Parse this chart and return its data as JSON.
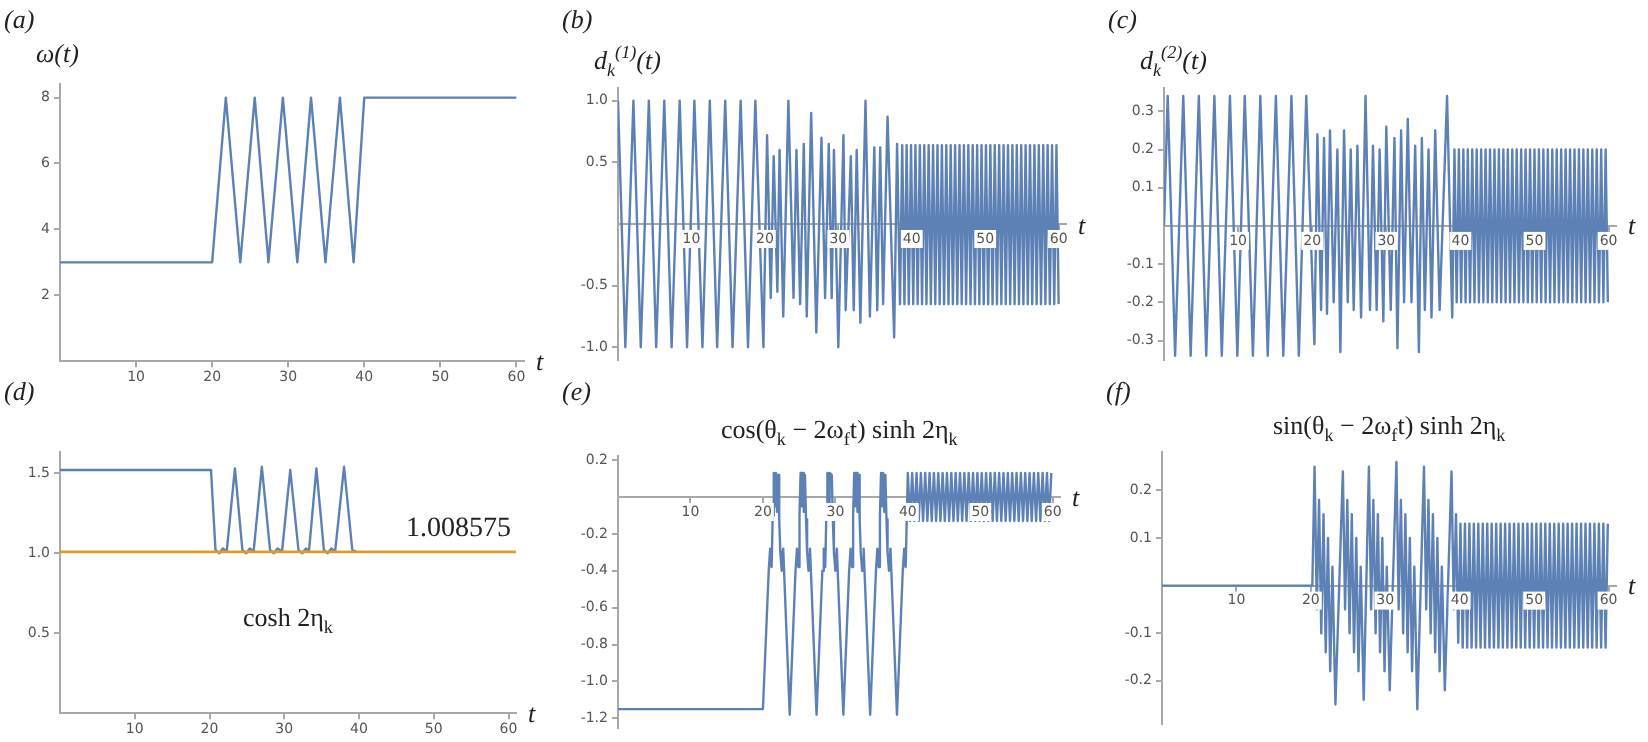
{
  "chart_data": [
    {
      "type": "line",
      "annotations": [
        "(a)"
      ],
      "ylabel": "ω(t)",
      "xlabel": "t",
      "xlim": [
        0,
        61
      ],
      "xticks": [
        10,
        20,
        30,
        40,
        50,
        60
      ],
      "ylim": [
        0,
        8.4
      ],
      "yticks": [
        2,
        4,
        6,
        8
      ],
      "series": [
        {
          "color": "#5e81b5",
          "x": [
            0,
            20,
            21.8,
            23.7,
            25.6,
            27.4,
            29.3,
            31.2,
            33.0,
            34.9,
            36.8,
            38.6,
            40,
            60
          ],
          "values": [
            3,
            3,
            8,
            3,
            8,
            3,
            8,
            3,
            8,
            3,
            8,
            3,
            8,
            8
          ]
        }
      ]
    },
    {
      "type": "line",
      "annotations": [
        "(b)"
      ],
      "ylabel": "d$_{k}$$^{(1)}$(t)",
      "xlabel": "t",
      "xlim": [
        0,
        61
      ],
      "xticks": [
        10,
        20,
        30,
        40,
        50,
        60
      ],
      "ylim": [
        -1.1,
        1.1
      ],
      "yticks": [
        {
          "value": -1,
          "label": "-1.0"
        },
        {
          "value": -0.5,
          "label": "-0.5"
        },
        {
          "value": 0.5,
          "label": "0.5"
        },
        {
          "value": 1,
          "label": "1.0"
        }
      ],
      "series": [
        {
          "color": "#5e81b5",
          "x": [
            0,
            1.0,
            2.1,
            3.1,
            4.2,
            5.2,
            6.3,
            7.3,
            8.4,
            9.4,
            10.4,
            11.5,
            12.5,
            13.5,
            14.6,
            15.6,
            16.7,
            17.7,
            18.7,
            19.8,
            20.3,
            20.8,
            21.2,
            21.7,
            22.0,
            22.5,
            23.2,
            23.9,
            24.3,
            24.8,
            25.3,
            25.7,
            26.3,
            27.0,
            27.7,
            28.2,
            28.7,
            29.1,
            29.4,
            30.0,
            30.7,
            31.0,
            31.7,
            32.1,
            32.5,
            33.0,
            33.7,
            34.3,
            34.9,
            35.3,
            35.7,
            36.1,
            36.7,
            37.6,
            38.0,
            38.4,
            38.7,
            39.0,
            39.3,
            39.6,
            39.9,
            40.2,
            40.5,
            40.8,
            41.1,
            41.4,
            41.7,
            42.0,
            42.3,
            42.6,
            42.9,
            43.2,
            43.5,
            43.8,
            44.1,
            44.4,
            44.7,
            45.0,
            45.3,
            45.6,
            45.9,
            46.2,
            46.5,
            46.8,
            47.1,
            47.4,
            47.7,
            48.0,
            48.3,
            48.6,
            48.9,
            49.2,
            49.5,
            49.8,
            50.1,
            50.4,
            50.7,
            51.0,
            51.3,
            51.6,
            51.9,
            52.2,
            52.5,
            52.8,
            53.1,
            53.4,
            53.7,
            54.0,
            54.3,
            54.6,
            54.9,
            55.2,
            55.5,
            55.8,
            56.1,
            56.4,
            56.7,
            57.0,
            57.3,
            57.6,
            57.9,
            58.2,
            58.5,
            58.8,
            59.1,
            59.4,
            59.7,
            60.0
          ],
          "values": [
            1,
            -1,
            1,
            -1,
            1,
            -1,
            1,
            -1,
            1,
            -1,
            1,
            -1,
            1,
            -1,
            1,
            -1,
            1,
            -1,
            1,
            -1,
            0.72,
            -0.6,
            0.55,
            -0.55,
            0.6,
            -0.75,
            1.0,
            -0.6,
            0.6,
            -0.65,
            0.65,
            -0.75,
            0.9,
            -0.88,
            0.7,
            -0.6,
            0.65,
            -0.6,
            0.6,
            -1.0,
            0.72,
            -0.7,
            0.55,
            -0.7,
            0.6,
            -0.8,
            1.0,
            -0.75,
            0.62,
            -0.7,
            0.62,
            -0.65,
            0.87,
            -0.92,
            0.65,
            -0.65,
            0.64,
            -0.65,
            0.64,
            -0.65,
            0.64,
            -0.65,
            0.64,
            -0.65,
            0.64,
            -0.65,
            0.64,
            -0.65,
            0.64,
            -0.65,
            0.64,
            -0.65,
            0.64,
            -0.65,
            0.64,
            -0.65,
            0.64,
            -0.65,
            0.64,
            -0.65,
            0.64,
            -0.65,
            0.64,
            -0.65,
            0.64,
            -0.65,
            0.64,
            -0.65,
            0.64,
            -0.65,
            0.64,
            -0.65,
            0.64,
            -0.65,
            0.64,
            -0.65,
            0.64,
            -0.65,
            0.64,
            -0.65,
            0.64,
            -0.65,
            0.64,
            -0.65,
            0.64,
            -0.65,
            0.64,
            -0.65,
            0.64,
            -0.65,
            0.64,
            -0.65,
            0.64,
            -0.65,
            0.64,
            -0.65,
            0.64,
            -0.65,
            0.64,
            -0.65,
            0.64,
            -0.65,
            0.64,
            -0.65,
            0.64,
            -0.65,
            0.64,
            -0.65
          ]
        }
      ]
    },
    {
      "type": "line",
      "annotations": [
        "(c)"
      ],
      "ylabel": "d$_{k}$$^{(2)}$(t)",
      "xlabel": "t",
      "xlim": [
        0,
        61
      ],
      "xticks": [
        10,
        20,
        30,
        40,
        50,
        60
      ],
      "ylim": [
        -0.35,
        0.36
      ],
      "yticks": [
        {
          "value": -0.3,
          "label": "-0.3"
        },
        {
          "value": -0.2,
          "label": "-0.2"
        },
        {
          "value": -0.1,
          "label": "-0.1"
        },
        0.1,
        0.2,
        0.3
      ],
      "series": [
        {
          "color": "#5e81b5",
          "x": [
            0,
            0.5,
            1.5,
            2.6,
            3.6,
            4.7,
            5.7,
            6.8,
            7.8,
            8.9,
            9.9,
            10.9,
            12.0,
            13.0,
            14.0,
            15.1,
            16.1,
            17.2,
            18.2,
            19.2,
            20.3,
            20.7,
            21.2,
            21.6,
            22.0,
            22.4,
            22.9,
            23.4,
            23.8,
            24.3,
            24.8,
            25.2,
            25.6,
            26.1,
            26.6,
            27.2,
            27.8,
            28.2,
            28.7,
            29.1,
            29.6,
            30.0,
            30.6,
            31.1,
            31.5,
            32.0,
            32.4,
            32.9,
            33.4,
            33.9,
            34.4,
            34.8,
            35.2,
            35.7,
            36.1,
            36.6,
            37.2,
            38.2,
            38.9,
            39.2,
            39.5,
            39.8,
            40.1,
            40.4,
            40.7,
            41.0,
            41.3,
            41.6,
            41.9,
            42.2,
            42.5,
            42.8,
            43.1,
            43.4,
            43.7,
            44.0,
            44.3,
            44.6,
            44.9,
            45.2,
            45.5,
            45.8,
            46.1,
            46.4,
            46.7,
            47.0,
            47.3,
            47.6,
            47.9,
            48.2,
            48.5,
            48.8,
            49.1,
            49.4,
            49.7,
            50.0,
            50.3,
            50.6,
            50.9,
            51.2,
            51.5,
            51.8,
            52.1,
            52.4,
            52.7,
            53.0,
            53.3,
            53.6,
            53.9,
            54.2,
            54.5,
            54.8,
            55.1,
            55.4,
            55.7,
            56.0,
            56.3,
            56.6,
            56.9,
            57.2,
            57.5,
            57.8,
            58.1,
            58.4,
            58.7,
            59.0,
            59.3,
            59.6,
            59.9
          ],
          "values": [
            0,
            0.34,
            -0.34,
            0.34,
            -0.34,
            0.34,
            -0.34,
            0.34,
            -0.34,
            0.34,
            -0.34,
            0.34,
            -0.34,
            0.34,
            -0.34,
            0.34,
            -0.34,
            0.34,
            -0.34,
            0.34,
            -0.31,
            0.24,
            -0.22,
            0.23,
            -0.23,
            0.25,
            -0.2,
            0.2,
            -0.33,
            0.25,
            -0.2,
            0.2,
            -0.22,
            0.21,
            -0.24,
            0.34,
            -0.22,
            0.21,
            -0.22,
            0.2,
            -0.25,
            0.26,
            -0.22,
            0.23,
            -0.32,
            0.25,
            -0.2,
            0.28,
            -0.2,
            0.21,
            -0.33,
            0.23,
            -0.22,
            0.2,
            -0.24,
            0.25,
            -0.22,
            0.34,
            -0.24,
            0.2,
            -0.2,
            0.2,
            -0.2,
            0.2,
            -0.2,
            0.2,
            -0.2,
            0.2,
            -0.2,
            0.2,
            -0.2,
            0.2,
            -0.2,
            0.2,
            -0.2,
            0.2,
            -0.2,
            0.2,
            -0.2,
            0.2,
            -0.2,
            0.2,
            -0.2,
            0.2,
            -0.2,
            0.2,
            -0.2,
            0.2,
            -0.2,
            0.2,
            -0.2,
            0.2,
            -0.2,
            0.2,
            -0.2,
            0.2,
            -0.2,
            0.2,
            -0.2,
            0.2,
            -0.2,
            0.2,
            -0.2,
            0.2,
            -0.2,
            0.2,
            -0.2,
            0.2,
            -0.2,
            0.2,
            -0.2,
            0.2,
            -0.2,
            0.2,
            -0.2,
            0.2,
            -0.2,
            0.2,
            -0.2,
            0.2,
            -0.2,
            0.2,
            -0.2,
            0.2,
            -0.2,
            0.2,
            -0.2,
            0.2,
            -0.2
          ]
        }
      ]
    },
    {
      "type": "line",
      "annotations": [
        "(d)"
      ],
      "xlabel": "t",
      "xlim": [
        0,
        61
      ],
      "xticks": [
        10,
        20,
        30,
        40,
        50,
        60
      ],
      "ylim": [
        0,
        1.63
      ],
      "yticks": [
        0.5,
        {
          "value": 1,
          "label": "1.0"
        },
        1.5
      ],
      "ref_lines": [
        {
          "axis": "y",
          "value": 1.008575,
          "label": "1.008575",
          "color": "#e19c24"
        }
      ],
      "series": [
        {
          "name": "cosh 2η$_{k}$",
          "color": "#5e81b5",
          "x": [
            0,
            20.2,
            20.8,
            21.3,
            21.8,
            22.3,
            23.4,
            24.4,
            24.9,
            25.4,
            25.9,
            27.0,
            28.1,
            28.6,
            29.1,
            29.7,
            30.8,
            31.9,
            32.4,
            32.9,
            33.3,
            34.3,
            35.3,
            35.8,
            36.3,
            36.8,
            38.0,
            39.1,
            39.6
          ],
          "values": [
            1.52,
            1.52,
            1.02,
            1.0,
            1.03,
            1.01,
            1.53,
            1.02,
            1.0,
            1.03,
            1.01,
            1.54,
            1.02,
            1.0,
            1.03,
            1.01,
            1.52,
            1.02,
            1.0,
            1.03,
            1.01,
            1.53,
            1.02,
            1.0,
            1.03,
            1.01,
            1.54,
            1.02,
            1.01
          ]
        }
      ]
    },
    {
      "type": "line",
      "annotations": [
        "(e)"
      ],
      "title": "cos(θ$_{k}$ − 2ω$_{f}$t) sinh 2η$_{k}$",
      "xlabel": "t",
      "xlim": [
        0,
        61
      ],
      "xticks": [
        10,
        20,
        30,
        40,
        50,
        60
      ],
      "ylim": [
        -1.25,
        0.22
      ],
      "yticks": [
        {
          "value": -1.2,
          "label": "-1.2"
        },
        {
          "value": -1,
          "label": "-1.0"
        },
        {
          "value": -0.8,
          "label": "-0.8"
        },
        {
          "value": -0.6,
          "label": "-0.6"
        },
        {
          "value": -0.4,
          "label": "-0.4"
        },
        {
          "value": -0.2,
          "label": "-0.2"
        },
        0.2
      ],
      "series": [
        {
          "color": "#5e81b5",
          "x": [
            0,
            20.0,
            20.8,
            21.0,
            21.2,
            21.35,
            21.5,
            21.65,
            21.8,
            21.95,
            22.1,
            22.25,
            22.4,
            22.6,
            22.8,
            23.7,
            24.5,
            24.7,
            24.9,
            25.05,
            25.2,
            25.35,
            25.5,
            25.65,
            25.8,
            25.95,
            26.1,
            26.3,
            26.5,
            27.4,
            28.2,
            28.4,
            28.6,
            28.75,
            28.9,
            29.05,
            29.2,
            29.35,
            29.5,
            29.65,
            29.8,
            30.0,
            30.2,
            31.1,
            31.9,
            32.1,
            32.3,
            32.45,
            32.6,
            32.75,
            32.9,
            33.05,
            33.2,
            33.35,
            33.5,
            33.7,
            33.9,
            34.8,
            35.6,
            35.8,
            36.0,
            36.15,
            36.3,
            36.45,
            36.6,
            36.75,
            36.9,
            37.05,
            37.2,
            37.4,
            37.6,
            38.5,
            39.3,
            39.5,
            39.7,
            40.0,
            40.3,
            40.6,
            40.9,
            41.2,
            41.5,
            41.8,
            42.1,
            42.4,
            42.7,
            43.0,
            43.3,
            43.6,
            43.9,
            44.2,
            44.5,
            44.8,
            45.1,
            45.4,
            45.7,
            46.0,
            46.3,
            46.6,
            46.9,
            47.2,
            47.5,
            47.8,
            48.1,
            48.4,
            48.7,
            49.0,
            49.3,
            49.6,
            49.9,
            50.2,
            50.5,
            50.8,
            51.1,
            51.4,
            51.7,
            52.0,
            52.3,
            52.6,
            52.9,
            53.2,
            53.5,
            53.8,
            54.1,
            54.4,
            54.7,
            55.0,
            55.3,
            55.6,
            55.9,
            56.2,
            56.5,
            56.8,
            57.1,
            57.4,
            57.7,
            58.0,
            58.3,
            58.6,
            58.9,
            59.2,
            59.5,
            59.8
          ],
          "values": [
            -1.15,
            -1.15,
            -0.4,
            -0.28,
            -0.38,
            -0.1,
            0.13,
            -0.05,
            0.13,
            -0.08,
            0.12,
            -0.12,
            -0.3,
            -0.4,
            -0.28,
            -1.18,
            -0.4,
            -0.28,
            -0.38,
            -0.1,
            0.13,
            -0.05,
            0.13,
            -0.08,
            0.12,
            -0.12,
            -0.3,
            -0.4,
            -0.28,
            -1.18,
            -0.4,
            -0.28,
            -0.38,
            -0.1,
            0.13,
            -0.05,
            0.13,
            null,
            0.12,
            -0.12,
            -0.3,
            -0.4,
            -0.28,
            -1.18,
            -0.4,
            -0.28,
            -0.38,
            -0.1,
            0.13,
            -0.05,
            0.13,
            -0.08,
            0.12,
            -0.12,
            -0.3,
            -0.4,
            -0.28,
            -1.18,
            -0.4,
            -0.28,
            -0.38,
            -0.1,
            0.13,
            -0.05,
            0.13,
            -0.08,
            0.12,
            -0.12,
            -0.3,
            -0.4,
            -0.28,
            -1.18,
            -0.4,
            -0.28,
            -0.38,
            0.13,
            -0.13,
            0.13,
            -0.13,
            0.13,
            -0.13,
            0.13,
            -0.13,
            0.13,
            -0.13,
            0.13,
            -0.13,
            0.13,
            -0.13,
            0.13,
            -0.13,
            0.13,
            -0.13,
            0.13,
            -0.13,
            0.13,
            -0.13,
            0.13,
            -0.13,
            0.13,
            -0.13,
            0.13,
            -0.13,
            0.13,
            -0.13,
            0.13,
            -0.13,
            0.13,
            -0.13,
            0.13,
            -0.13,
            0.13,
            -0.13,
            0.13,
            -0.13,
            0.13,
            -0.13,
            0.13,
            -0.13,
            0.13,
            -0.13,
            0.13,
            -0.13,
            0.13,
            -0.13,
            0.13,
            -0.13,
            0.13,
            -0.13,
            0.13,
            -0.13,
            0.13,
            -0.13,
            0.13,
            -0.13,
            0.13,
            -0.13,
            0.13,
            -0.13,
            0.13,
            -0.13,
            0.13
          ]
        }
      ]
    },
    {
      "type": "line",
      "annotations": [
        "(f)"
      ],
      "title": "sin(θ$_{k}$ − 2ω$_{f}$t) sinh 2η$_{k}$",
      "xlabel": "t",
      "xlim": [
        0,
        61
      ],
      "xticks": [
        10,
        20,
        30,
        40,
        50,
        60
      ],
      "ylim": [
        -0.29,
        0.28
      ],
      "yticks": [
        {
          "value": -0.2,
          "label": "-0.2"
        },
        {
          "value": -0.1,
          "label": "-0.1"
        },
        0.1,
        0.2
      ],
      "series": [
        {
          "color": "#5e81b5",
          "x": [
            0,
            20.2,
            20.5,
            20.8,
            21.1,
            21.4,
            21.7,
            22.0,
            22.3,
            22.6,
            22.9,
            23.3,
            24.3,
            24.6,
            24.9,
            25.2,
            25.5,
            25.8,
            26.1,
            26.4,
            26.7,
            27.1,
            27.8,
            28.1,
            28.4,
            28.7,
            29.0,
            29.3,
            29.6,
            29.9,
            30.2,
            30.6,
            31.5,
            31.8,
            32.1,
            32.4,
            32.7,
            33.0,
            33.3,
            33.6,
            33.9,
            34.3,
            35.2,
            35.5,
            35.8,
            36.1,
            36.4,
            36.7,
            37.0,
            37.3,
            37.6,
            38.0,
            38.9,
            39.2,
            39.5,
            39.8,
            40.1,
            40.4,
            40.7,
            41.0,
            41.3,
            41.6,
            41.9,
            42.2,
            42.5,
            42.8,
            43.1,
            43.4,
            43.7,
            44.0,
            44.3,
            44.6,
            44.9,
            45.2,
            45.5,
            45.8,
            46.1,
            46.4,
            46.7,
            47.0,
            47.3,
            47.6,
            47.9,
            48.2,
            48.5,
            48.8,
            49.1,
            49.4,
            49.7,
            50.0,
            50.3,
            50.6,
            50.9,
            51.2,
            51.5,
            51.8,
            52.1,
            52.4,
            52.7,
            53.0,
            53.3,
            53.6,
            53.9,
            54.2,
            54.5,
            54.8,
            55.1,
            55.4,
            55.7,
            56.0,
            56.3,
            56.6,
            56.9,
            57.2,
            57.5,
            57.8,
            58.1,
            58.4,
            58.7,
            59.0,
            59.3,
            59.6,
            59.9
          ],
          "values": [
            0,
            0,
            0.25,
            -0.05,
            0.18,
            -0.1,
            0.15,
            -0.14,
            0.1,
            -0.18,
            0.04,
            -0.25,
            0.24,
            -0.05,
            0.18,
            -0.1,
            0.15,
            -0.14,
            0.1,
            -0.18,
            0.04,
            -0.24,
            0.25,
            -0.05,
            0.18,
            -0.1,
            0.15,
            -0.14,
            0.1,
            -0.18,
            0.04,
            -0.22,
            0.26,
            -0.05,
            0.18,
            -0.1,
            0.15,
            -0.14,
            0.1,
            -0.18,
            0.04,
            -0.26,
            0.25,
            -0.05,
            0.18,
            -0.1,
            0.15,
            -0.14,
            0.1,
            -0.18,
            0.04,
            -0.22,
            0.24,
            -0.05,
            0.15,
            -0.12,
            0.13,
            -0.13,
            0.13,
            -0.13,
            0.13,
            -0.13,
            0.13,
            -0.13,
            0.13,
            -0.13,
            0.13,
            -0.13,
            0.13,
            -0.13,
            0.13,
            -0.13,
            0.13,
            -0.13,
            0.13,
            -0.13,
            0.13,
            -0.13,
            0.13,
            -0.13,
            0.13,
            -0.13,
            0.13,
            -0.13,
            0.13,
            -0.13,
            0.13,
            -0.13,
            0.13,
            -0.13,
            0.13,
            -0.13,
            0.13,
            -0.13,
            0.13,
            -0.13,
            0.13,
            -0.13,
            0.13,
            -0.13,
            0.13,
            -0.13,
            0.13,
            -0.13,
            0.13,
            -0.13,
            0.13,
            -0.13,
            0.13,
            -0.13,
            0.13,
            -0.13,
            0.13,
            -0.13,
            0.13,
            -0.13,
            0.13,
            -0.13,
            0.13,
            -0.13,
            0.13,
            -0.13,
            0.13
          ]
        }
      ]
    }
  ]
}
